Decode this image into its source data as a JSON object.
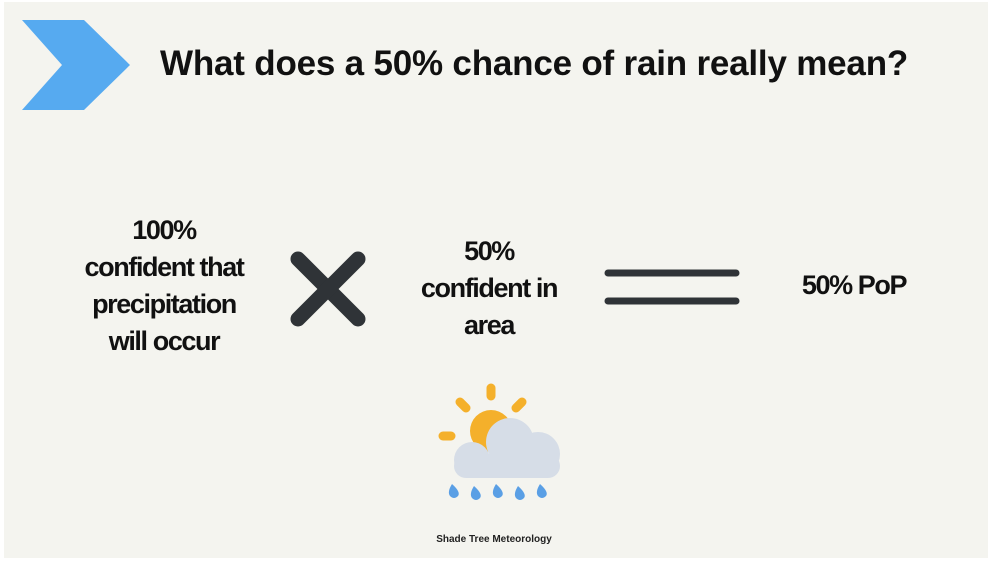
{
  "slide": {
    "title": "What does a 50% chance of rain really mean?",
    "term_a": [
      "100%",
      "confident that",
      "precipitation",
      "will occur"
    ],
    "term_b": [
      "50%",
      "confident in",
      "area"
    ],
    "result": "50% PoP",
    "footer": "Shade Tree Meteorology"
  },
  "icons": {
    "header": "chevron-right-icon",
    "operator_1": "multiply-icon",
    "operator_2": "equals-icon",
    "weather": "sun-cloud-rain-icon"
  },
  "colors": {
    "background": "#f4f4ef",
    "chevron": "#56aaf0",
    "operator": "#2f3337",
    "sun": "#f4b02b",
    "cloud": "#d6dde7",
    "rain": "#5a9fe5",
    "text": "#111111"
  }
}
